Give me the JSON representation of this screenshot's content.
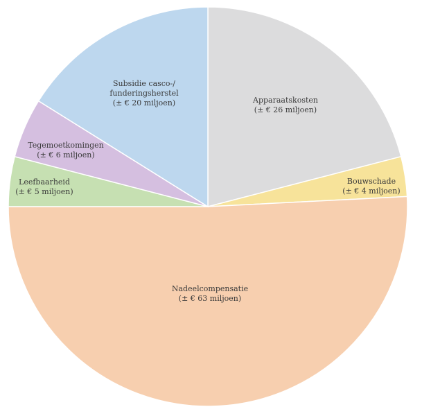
{
  "chart_data": {
    "type": "pie",
    "start_angle_deg": 0,
    "direction": "clockwise",
    "slices": [
      {
        "name": "Apparaatskosten",
        "amount": "(± € 26 miljoen)",
        "value": 26,
        "color": "#dcdcdd"
      },
      {
        "name": "Bouwschade",
        "amount": "(± € 4 miljoen)",
        "value": 4,
        "color": "#f7e39a"
      },
      {
        "name": "Nadeelcompensatie",
        "amount": "(± € 63 miljoen)",
        "value": 63,
        "color": "#f7cfaf"
      },
      {
        "name": "Leefbaarheid",
        "amount": "(± € 5 miljoen)",
        "value": 5,
        "color": "#c6e0b2"
      },
      {
        "name": "Tegemoetkomingen",
        "amount": "(± € 6 miljoen)",
        "value": 6,
        "color": "#d5bfe0"
      },
      {
        "name": "Subsidie casco-/ funderingsherstel",
        "amount": "(± € 20 miljoen)",
        "value": 20,
        "color": "#bdd7ee"
      }
    ]
  }
}
